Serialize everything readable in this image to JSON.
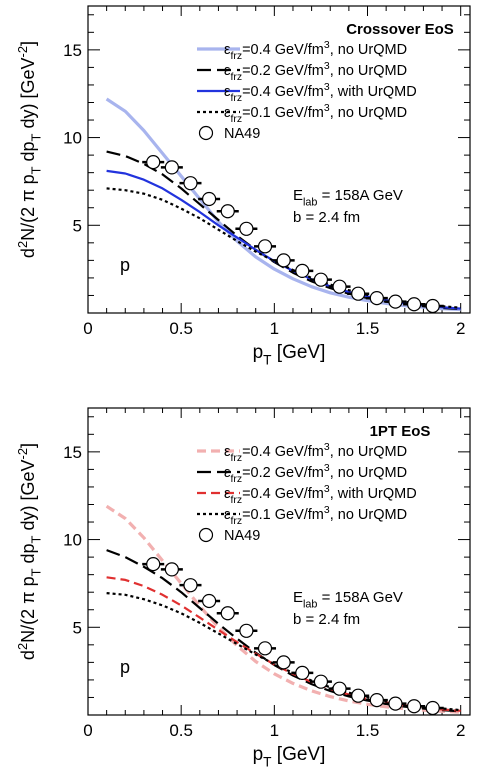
{
  "chart_data": [
    {
      "type": "line",
      "title": "Crossover EoS",
      "xlabel": "p_T [GeV]",
      "ylabel": "d²N/(2 π p_T dp_T dy) [GeV⁻²]",
      "xlim": [
        0,
        2.05
      ],
      "ylim": [
        0,
        17.5
      ],
      "x_ticks": [
        "0",
        "0.5",
        "1",
        "1.5",
        "2"
      ],
      "y_ticks": [
        "5",
        "10",
        "15"
      ],
      "annotation_energy": "E_lab = 158A GeV",
      "annotation_impact": "b = 2.4 fm",
      "particle_label": "p",
      "legend_position": "top-right",
      "series": [
        {
          "name": "ε_frz=0.4 GeV/fm³, no UrQMD",
          "color": "#a8b4ee",
          "style": "solid",
          "x": [
            0.1,
            0.2,
            0.3,
            0.4,
            0.5,
            0.6,
            0.7,
            0.8,
            0.9,
            1.0,
            1.1,
            1.2,
            1.3,
            1.4,
            1.5,
            1.6,
            1.7,
            1.8,
            1.9,
            2.0
          ],
          "y": [
            12.2,
            11.5,
            10.4,
            9.1,
            7.8,
            6.5,
            5.2,
            4.1,
            3.2,
            2.5,
            1.95,
            1.5,
            1.15,
            0.9,
            0.7,
            0.55,
            0.42,
            0.33,
            0.25,
            0.2
          ]
        },
        {
          "name": "ε_frz=0.2 GeV/fm³, no UrQMD",
          "color": "#000000",
          "style": "longdash",
          "x": [
            0.1,
            0.2,
            0.3,
            0.4,
            0.5,
            0.6,
            0.7,
            0.8,
            0.9,
            1.0,
            1.1,
            1.2,
            1.3,
            1.4,
            1.5,
            1.6,
            1.7,
            1.8,
            1.9,
            2.0
          ],
          "y": [
            9.2,
            8.95,
            8.5,
            7.9,
            7.1,
            6.2,
            5.3,
            4.4,
            3.6,
            2.9,
            2.3,
            1.8,
            1.42,
            1.1,
            0.85,
            0.65,
            0.5,
            0.38,
            0.29,
            0.22
          ]
        },
        {
          "name": "ε_frz=0.4 GeV/fm³, with UrQMD",
          "color": "#2233dd",
          "style": "solid",
          "x": [
            0.1,
            0.2,
            0.3,
            0.4,
            0.5,
            0.6,
            0.7,
            0.8,
            0.9,
            1.0,
            1.1,
            1.2,
            1.3,
            1.4,
            1.5,
            1.6,
            1.7,
            1.8,
            1.9,
            2.0
          ],
          "y": [
            8.1,
            7.95,
            7.6,
            7.1,
            6.45,
            5.75,
            5.0,
            4.3,
            3.6,
            2.95,
            2.4,
            1.92,
            1.52,
            1.2,
            0.94,
            0.73,
            0.56,
            0.43,
            0.33,
            0.25
          ]
        },
        {
          "name": "ε_frz=0.1 GeV/fm³, no UrQMD",
          "color": "#000000",
          "style": "dotted",
          "x": [
            0.1,
            0.2,
            0.3,
            0.4,
            0.5,
            0.6,
            0.7,
            0.8,
            0.9,
            1.0,
            1.1,
            1.2,
            1.3,
            1.4,
            1.5,
            1.6,
            1.7,
            1.8,
            1.9,
            2.0
          ],
          "y": [
            7.1,
            7.0,
            6.8,
            6.45,
            5.95,
            5.4,
            4.75,
            4.1,
            3.5,
            2.95,
            2.45,
            2.0,
            1.62,
            1.3,
            1.03,
            0.82,
            0.64,
            0.5,
            0.39,
            0.3
          ]
        }
      ],
      "data_points": {
        "name": "NA49",
        "x": [
          0.35,
          0.45,
          0.55,
          0.65,
          0.75,
          0.85,
          0.95,
          1.05,
          1.15,
          1.25,
          1.35,
          1.45,
          1.55,
          1.65,
          1.75,
          1.85
        ],
        "y": [
          8.6,
          8.3,
          7.4,
          6.5,
          5.8,
          4.8,
          3.8,
          3.0,
          2.4,
          1.9,
          1.5,
          1.1,
          0.85,
          0.65,
          0.5,
          0.4
        ]
      }
    },
    {
      "type": "line",
      "title": "1PT EoS",
      "xlabel": "p_T [GeV]",
      "ylabel": "d²N/(2 π p_T dp_T dy) [GeV⁻²]",
      "xlim": [
        0,
        2.05
      ],
      "ylim": [
        0,
        17.5
      ],
      "x_ticks": [
        "0",
        "0.5",
        "1",
        "1.5",
        "2"
      ],
      "y_ticks": [
        "5",
        "10",
        "15"
      ],
      "annotation_energy": "E_lab = 158A GeV",
      "annotation_impact": "b = 2.4 fm",
      "particle_label": "p",
      "legend_position": "top-right",
      "series": [
        {
          "name": "ε_frz=0.4 GeV/fm³, no UrQMD",
          "color": "#f2b0b0",
          "style": "dashed",
          "x": [
            0.1,
            0.2,
            0.3,
            0.4,
            0.5,
            0.6,
            0.7,
            0.8,
            0.9,
            1.0,
            1.1,
            1.2,
            1.3,
            1.4,
            1.5,
            1.6,
            1.7,
            1.8,
            1.9,
            2.0
          ],
          "y": [
            11.9,
            11.2,
            10.1,
            8.8,
            7.5,
            6.2,
            5.0,
            3.95,
            3.05,
            2.35,
            1.8,
            1.38,
            1.05,
            0.8,
            0.61,
            0.47,
            0.36,
            0.28,
            0.21,
            0.16
          ]
        },
        {
          "name": "ε_frz=0.2 GeV/fm³, no UrQMD",
          "color": "#000000",
          "style": "longdash",
          "x": [
            0.1,
            0.2,
            0.3,
            0.4,
            0.5,
            0.6,
            0.7,
            0.8,
            0.9,
            1.0,
            1.1,
            1.2,
            1.3,
            1.4,
            1.5,
            1.6,
            1.7,
            1.8,
            1.9,
            2.0
          ],
          "y": [
            9.4,
            9.0,
            8.45,
            7.8,
            7.0,
            6.1,
            5.2,
            4.35,
            3.55,
            2.85,
            2.25,
            1.76,
            1.37,
            1.06,
            0.82,
            0.63,
            0.48,
            0.37,
            0.28,
            0.21
          ]
        },
        {
          "name": "ε_frz=0.4 GeV/fm³, with UrQMD",
          "color": "#e03030",
          "style": "dashed",
          "x": [
            0.1,
            0.2,
            0.3,
            0.4,
            0.5,
            0.6,
            0.7,
            0.8,
            0.9,
            1.0,
            1.1,
            1.2,
            1.3,
            1.4,
            1.5,
            1.6,
            1.7,
            1.8,
            1.9,
            2.0
          ],
          "y": [
            7.85,
            7.7,
            7.35,
            6.85,
            6.25,
            5.55,
            4.85,
            4.15,
            3.5,
            2.88,
            2.34,
            1.88,
            1.49,
            1.17,
            0.91,
            0.71,
            0.55,
            0.42,
            0.32,
            0.24
          ]
        },
        {
          "name": "ε_frz=0.1 GeV/fm³, no UrQMD",
          "color": "#000000",
          "style": "dotted",
          "x": [
            0.1,
            0.2,
            0.3,
            0.4,
            0.5,
            0.6,
            0.7,
            0.8,
            0.9,
            1.0,
            1.1,
            1.2,
            1.3,
            1.4,
            1.5,
            1.6,
            1.7,
            1.8,
            1.9,
            2.0
          ],
          "y": [
            6.95,
            6.85,
            6.6,
            6.25,
            5.8,
            5.25,
            4.65,
            4.05,
            3.45,
            2.9,
            2.4,
            1.96,
            1.58,
            1.27,
            1.0,
            0.79,
            0.62,
            0.48,
            0.37,
            0.28
          ]
        }
      ],
      "data_points": {
        "name": "NA49",
        "x": [
          0.35,
          0.45,
          0.55,
          0.65,
          0.75,
          0.85,
          0.95,
          1.05,
          1.15,
          1.25,
          1.35,
          1.45,
          1.55,
          1.65,
          1.75,
          1.85
        ],
        "y": [
          8.6,
          8.3,
          7.4,
          6.5,
          5.8,
          4.8,
          3.8,
          3.0,
          2.4,
          1.9,
          1.5,
          1.1,
          0.85,
          0.65,
          0.5,
          0.4
        ]
      }
    }
  ]
}
